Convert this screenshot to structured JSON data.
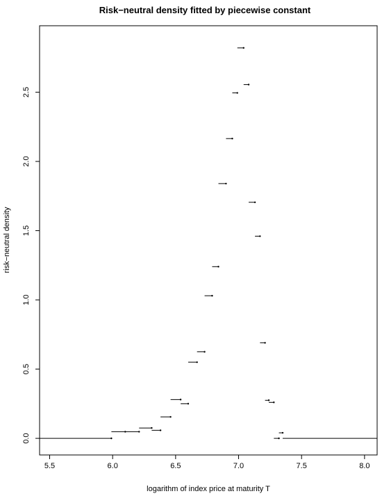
{
  "chart_data": {
    "type": "step",
    "title": "Risk−neutral density fitted by piecewise constant",
    "xlabel": "logarithm of index price at maturity T",
    "ylabel": "risk−neutral density",
    "xlim": [
      5.42,
      8.1
    ],
    "ylim": [
      -0.12,
      2.98
    ],
    "x_ticks": [
      5.5,
      6.0,
      6.5,
      7.0,
      7.5,
      8.0
    ],
    "x_tick_labels": [
      "5.5",
      "6.0",
      "6.5",
      "7.0",
      "7.5",
      "8.0"
    ],
    "y_ticks": [
      0.0,
      0.5,
      1.0,
      1.5,
      2.0,
      2.5
    ],
    "y_tick_labels": [
      "0.0",
      "0.5",
      "1.0",
      "1.5",
      "2.0",
      "2.5"
    ],
    "grid": false,
    "legend": "none",
    "segments": [
      {
        "x0": 5.42,
        "x1": 5.99,
        "y": 0.0
      },
      {
        "x0": 5.99,
        "x1": 6.1,
        "y": 0.048
      },
      {
        "x0": 6.1,
        "x1": 6.21,
        "y": 0.048
      },
      {
        "x0": 6.21,
        "x1": 6.31,
        "y": 0.075
      },
      {
        "x0": 6.31,
        "x1": 6.38,
        "y": 0.058
      },
      {
        "x0": 6.38,
        "x1": 6.46,
        "y": 0.155
      },
      {
        "x0": 6.46,
        "x1": 6.54,
        "y": 0.28
      },
      {
        "x0": 6.54,
        "x1": 6.6,
        "y": 0.25
      },
      {
        "x0": 6.6,
        "x1": 6.67,
        "y": 0.55
      },
      {
        "x0": 6.67,
        "x1": 6.73,
        "y": 0.625
      },
      {
        "x0": 6.73,
        "x1": 6.79,
        "y": 1.03
      },
      {
        "x0": 6.79,
        "x1": 6.84,
        "y": 1.24
      },
      {
        "x0": 6.84,
        "x1": 6.9,
        "y": 1.84
      },
      {
        "x0": 6.9,
        "x1": 6.95,
        "y": 2.165
      },
      {
        "x0": 6.95,
        "x1": 6.99,
        "y": 2.495
      },
      {
        "x0": 6.99,
        "x1": 7.04,
        "y": 2.82
      },
      {
        "x0": 7.04,
        "x1": 7.08,
        "y": 2.555
      },
      {
        "x0": 7.08,
        "x1": 7.13,
        "y": 1.705
      },
      {
        "x0": 7.13,
        "x1": 7.17,
        "y": 1.46
      },
      {
        "x0": 7.17,
        "x1": 7.21,
        "y": 0.69
      },
      {
        "x0": 7.21,
        "x1": 7.24,
        "y": 0.275
      },
      {
        "x0": 7.24,
        "x1": 7.28,
        "y": 0.26
      },
      {
        "x0": 7.28,
        "x1": 7.32,
        "y": 0.0
      },
      {
        "x0": 7.32,
        "x1": 7.35,
        "y": 0.04
      },
      {
        "x0": 7.35,
        "x1": 8.1,
        "y": 0.0
      }
    ]
  }
}
